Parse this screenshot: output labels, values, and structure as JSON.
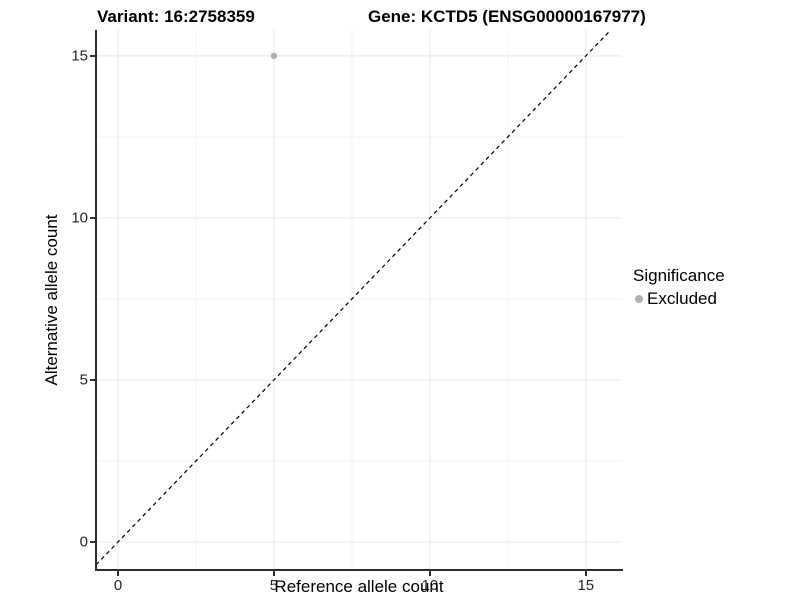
{
  "chart_data": {
    "type": "scatter",
    "title_left": "Variant: 16:2758359",
    "title_right": "Gene: KCTD5 (ENSG00000167977)",
    "xlabel": "Reference allele count",
    "ylabel": "Alternative allele count",
    "x_ticks": [
      0,
      5,
      10,
      15
    ],
    "y_ticks": [
      0,
      5,
      10,
      15
    ],
    "x_minor_ticks": [
      2.5,
      7.5,
      12.5
    ],
    "y_minor_ticks": [
      2.5,
      7.5,
      12.5
    ],
    "xlim": [
      -0.705,
      16.16
    ],
    "ylim": [
      -0.864,
      15.8
    ],
    "grid": true,
    "points": [
      {
        "x": 5,
        "y": 15,
        "series": "Excluded"
      }
    ],
    "reference_line": {
      "slope": 1,
      "intercept": 0,
      "style": "dashed",
      "color": "#000000"
    },
    "legend": {
      "title": "Significance",
      "position": "right",
      "items": [
        {
          "label": "Excluded",
          "color": "#b1b1b1"
        }
      ]
    },
    "colors": {
      "point": "#b1b1b1",
      "grid_major": "#e8e8e8",
      "grid_minor": "#f3f3f3",
      "axis": "#2e2e2e",
      "background": "#ffffff"
    }
  }
}
